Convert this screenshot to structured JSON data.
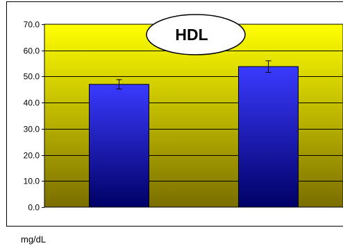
{
  "chart_data": {
    "type": "bar",
    "title": "HDL",
    "ylabel": "mg/dL",
    "xlabel": "",
    "ylim": [
      0,
      70
    ],
    "y_ticks": [
      "0.0",
      "10.0",
      "20.0",
      "30.0",
      "40.0",
      "50.0",
      "60.0",
      "70.0"
    ],
    "categories": [
      "",
      ""
    ],
    "values": [
      47.0,
      53.8
    ],
    "error_bars": [
      1.8,
      2.2
    ],
    "grid": true,
    "legend": "none"
  },
  "colors": {
    "bar_top": "#3a3aff",
    "bar_bottom": "#000066",
    "background_top": "#ffff00",
    "background_bottom": "#7a6e00",
    "gridline": "#000000",
    "title_ellipse_fill": "#ffffff"
  }
}
